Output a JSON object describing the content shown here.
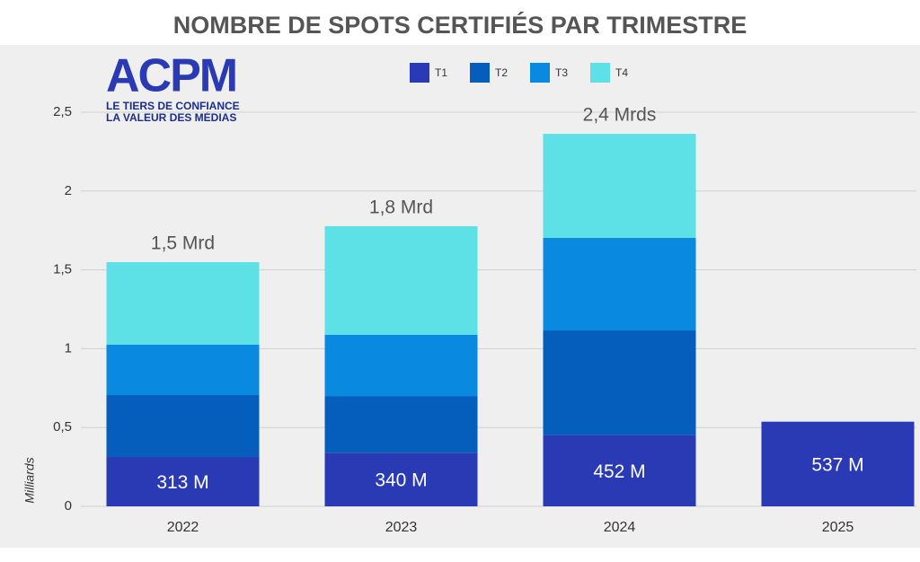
{
  "chart_data": {
    "type": "stacked_bar",
    "title": "NOMBRE DE SPOTS CERTIFIÉS PAR TRIMESTRE",
    "logo": {
      "name": "ACPM",
      "tagline": [
        "LE TIERS DE CONFIANCE",
        "LA VALEUR DES MÉDIAS"
      ]
    },
    "y_label": "Milliards",
    "categories": [
      "2022",
      "2023",
      "2024",
      "2025"
    ],
    "series": [
      {
        "name": "T1",
        "color": "#2a3ab4",
        "values": [
          0.313,
          0.34,
          0.452,
          0.537
        ],
        "value_labels": [
          "313 M",
          "340 M",
          "452 M",
          "537 M"
        ]
      },
      {
        "name": "T2",
        "color": "#065ebc",
        "values": [
          0.393,
          0.36,
          0.664,
          null
        ]
      },
      {
        "name": "T3",
        "color": "#0a89e1",
        "values": [
          0.319,
          0.388,
          0.587,
          null
        ]
      },
      {
        "name": "T4",
        "color": "#5de0e6",
        "values": [
          0.524,
          0.689,
          0.66,
          null
        ]
      }
    ],
    "annotations": [
      "1,5 Mrd",
      "1,8 Mrd",
      "2,4 Mrds"
    ],
    "ylim": [
      0,
      2.5
    ],
    "yticks": [
      0,
      {
        "value": 0.5,
        "label": "0,5"
      },
      1,
      {
        "value": 1.5,
        "label": "1,5"
      },
      2,
      {
        "value": 2.5,
        "label": "2,5"
      }
    ],
    "grid": true,
    "legend": "top"
  }
}
